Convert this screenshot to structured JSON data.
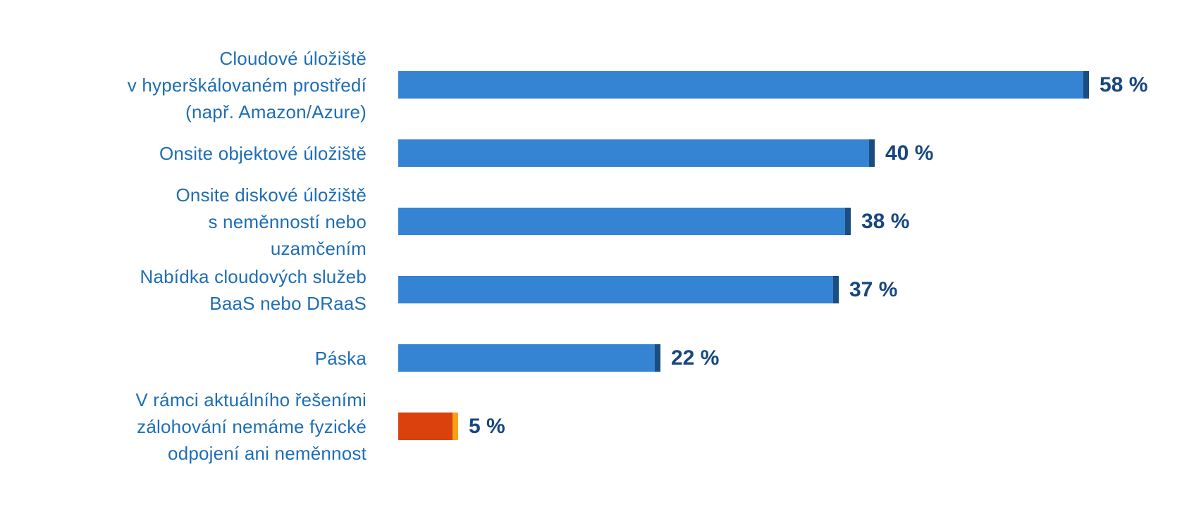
{
  "chart_data": {
    "type": "bar",
    "orientation": "horizontal",
    "title": "",
    "xlabel": "",
    "ylabel": "",
    "value_unit": "%",
    "xlim": [
      0,
      64
    ],
    "grid": false,
    "legend": false,
    "categories": [
      "Cloudové úložiště v hyperškálovaném prostředí (např. Amazon/Azure)",
      "Onsite objektové úložiště",
      "Onsite diskové úložiště s neměnností nebo uzamčením",
      "Nabídka cloudových služeb BaaS nebo DRaaS",
      "Páska",
      "V rámci aktuálního řešeními zálohování nemáme fyzické odpojení ani neměnnost"
    ],
    "values": [
      58,
      40,
      38,
      37,
      22,
      5
    ],
    "rows": [
      {
        "label_lines": [
          "Cloudové úložiště",
          "v hyperškálovaném prostředí",
          "(např. Amazon/Azure)"
        ],
        "value": 58,
        "value_label": "58 %",
        "bar_color": "#3584D3",
        "cap_color": "#1A4D80"
      },
      {
        "label_lines": [
          "Onsite objektové úložiště"
        ],
        "value": 40,
        "value_label": "40 %",
        "bar_color": "#3584D3",
        "cap_color": "#1A4D80"
      },
      {
        "label_lines": [
          "Onsite diskové úložiště",
          "s neměnností nebo",
          "uzamčením"
        ],
        "value": 38,
        "value_label": "38 %",
        "bar_color": "#3584D3",
        "cap_color": "#1A4D80"
      },
      {
        "label_lines": [
          "Nabídka cloudových služeb",
          "BaaS nebo DRaaS"
        ],
        "value": 37,
        "value_label": "37 %",
        "bar_color": "#3584D3",
        "cap_color": "#1A4D80"
      },
      {
        "label_lines": [
          "Páska"
        ],
        "value": 22,
        "value_label": "22 %",
        "bar_color": "#3584D3",
        "cap_color": "#1A4D80"
      },
      {
        "label_lines": [
          "V rámci aktuálního řešeními",
          "zálohování nemáme fyzické",
          "odpojení ani neměnnost"
        ],
        "value": 5,
        "value_label": "5 %",
        "bar_color": "#D9410D",
        "cap_color": "#F7A119"
      }
    ],
    "colors": {
      "bar_primary": "#3584D3",
      "bar_cap_primary": "#1A4D80",
      "bar_highlight": "#D9410D",
      "bar_cap_highlight": "#F7A119",
      "category_label_text": "#1E6EB5",
      "value_label_text": "#17477E",
      "background": "#FFFFFF"
    }
  }
}
